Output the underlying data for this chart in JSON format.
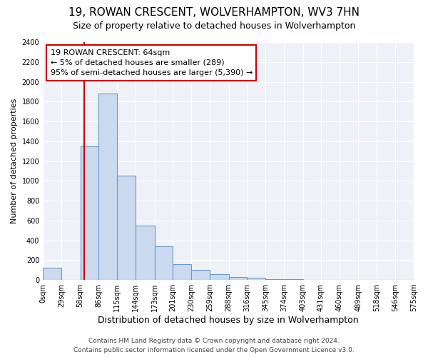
{
  "title": "19, ROWAN CRESCENT, WOLVERHAMPTON, WV3 7HN",
  "subtitle": "Size of property relative to detached houses in Wolverhampton",
  "xlabel": "Distribution of detached houses by size in Wolverhampton",
  "ylabel": "Number of detached properties",
  "bin_edges": [
    0,
    29,
    58,
    86,
    115,
    144,
    173,
    201,
    230,
    259,
    288,
    316,
    345,
    374,
    403,
    431,
    460,
    489,
    518,
    546,
    575
  ],
  "counts": [
    125,
    0,
    1350,
    1880,
    1050,
    550,
    340,
    160,
    105,
    60,
    30,
    20,
    5,
    5,
    2,
    2,
    0,
    0,
    2,
    0
  ],
  "bar_color": "#ccdaf0",
  "bar_edge_color": "#6699cc",
  "vline_x": 64,
  "vline_color": "#cc0000",
  "annotation_line1": "19 ROWAN CRESCENT: 64sqm",
  "annotation_line2": "← 5% of detached houses are smaller (289)",
  "annotation_line3": "95% of semi-detached houses are larger (5,390) →",
  "annotation_box_color": "#ffffff",
  "annotation_box_edge": "#cc0000",
  "ylim": [
    0,
    2400
  ],
  "yticks": [
    0,
    200,
    400,
    600,
    800,
    1000,
    1200,
    1400,
    1600,
    1800,
    2000,
    2200,
    2400
  ],
  "tick_labels": [
    "0sqm",
    "29sqm",
    "58sqm",
    "86sqm",
    "115sqm",
    "144sqm",
    "173sqm",
    "201sqm",
    "230sqm",
    "259sqm",
    "288sqm",
    "316sqm",
    "345sqm",
    "374sqm",
    "403sqm",
    "431sqm",
    "460sqm",
    "489sqm",
    "518sqm",
    "546sqm",
    "575sqm"
  ],
  "footer_line1": "Contains HM Land Registry data © Crown copyright and database right 2024.",
  "footer_line2": "Contains public sector information licensed under the Open Government Licence v3.0.",
  "background_color": "#ffffff",
  "plot_background": "#eef2f8",
  "grid_color": "#ffffff",
  "title_fontsize": 11,
  "subtitle_fontsize": 9,
  "xlabel_fontsize": 9,
  "ylabel_fontsize": 8,
  "tick_fontsize": 7,
  "footer_fontsize": 6.5,
  "annotation_fontsize": 8
}
